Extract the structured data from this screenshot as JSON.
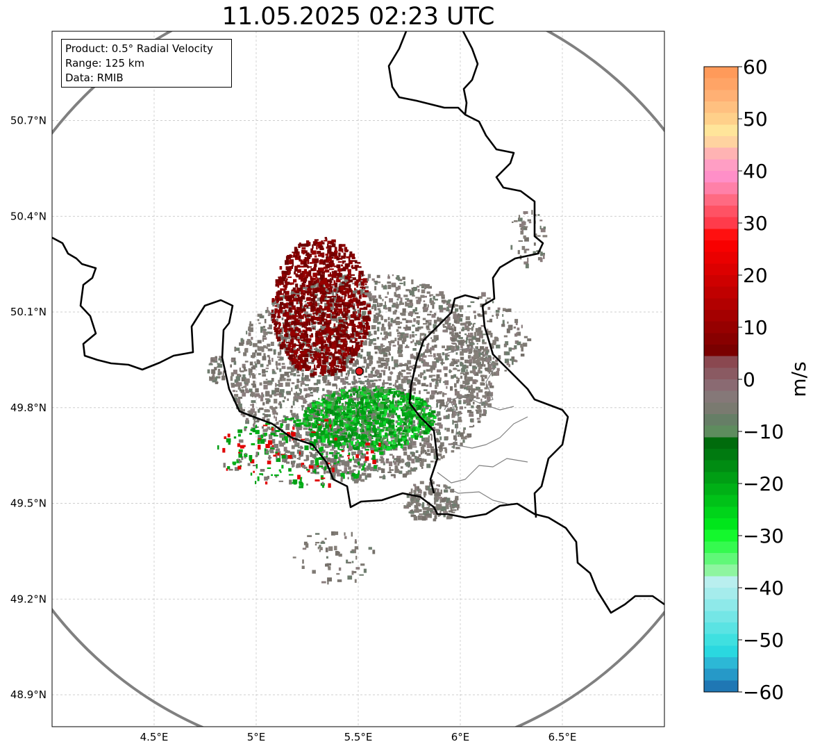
{
  "title": "11.05.2025 02:23 UTC",
  "info_box": {
    "lines": [
      "Product: 0.5° Radial Velocity",
      "Range: 125 km",
      "Data: RMIB"
    ]
  },
  "map": {
    "lon_range": [
      4.0,
      7.0
    ],
    "lat_range": [
      48.8,
      50.98
    ],
    "lon_ticks": [
      {
        "value": 4.5,
        "label": "4.5°E"
      },
      {
        "value": 5.0,
        "label": "5°E"
      },
      {
        "value": 5.5,
        "label": "5.5°E"
      },
      {
        "value": 6.0,
        "label": "6°E"
      },
      {
        "value": 6.5,
        "label": "6.5°E"
      }
    ],
    "lat_ticks": [
      {
        "value": 50.7,
        "label": "50.7°N"
      },
      {
        "value": 50.4,
        "label": "50.4°N"
      },
      {
        "value": 50.1,
        "label": "50.1°N"
      },
      {
        "value": 49.8,
        "label": "49.8°N"
      },
      {
        "value": 49.5,
        "label": "49.5°N"
      },
      {
        "value": 49.2,
        "label": "49.2°N"
      },
      {
        "value": 48.9,
        "label": "48.9°N"
      }
    ],
    "grid": true,
    "radar_site": {
      "lon": 5.505,
      "lat": 49.914
    },
    "range_ring_km": 125,
    "colors": {
      "range_ring": "#808080",
      "border": "#000000",
      "admin_border": "#808080",
      "radar_marker": "#e31a1c"
    }
  },
  "colorbar": {
    "label": "m/s",
    "min": -60,
    "max": 60,
    "ticks": [
      {
        "value": 60,
        "label": "60"
      },
      {
        "value": 50,
        "label": "50"
      },
      {
        "value": 40,
        "label": "40"
      },
      {
        "value": 30,
        "label": "30"
      },
      {
        "value": 20,
        "label": "20"
      },
      {
        "value": 10,
        "label": "10"
      },
      {
        "value": 0,
        "label": "0"
      },
      {
        "value": -10,
        "label": "−10"
      },
      {
        "value": -20,
        "label": "−20"
      },
      {
        "value": -30,
        "label": "−30"
      },
      {
        "value": -40,
        "label": "−40"
      },
      {
        "value": -50,
        "label": "−50"
      },
      {
        "value": -60,
        "label": "−60"
      }
    ],
    "stops": [
      "#1f77b4",
      "#2699c8",
      "#2cb8d6",
      "#2ad8e0",
      "#3fe0e0",
      "#5ae3e3",
      "#74e6e6",
      "#8ee9e9",
      "#a5ecec",
      "#b9efef",
      "#8ef5a0",
      "#60f878",
      "#35fa4f",
      "#14f82d",
      "#00e61b",
      "#00d41a",
      "#00c218",
      "#00b016",
      "#009e14",
      "#008c12",
      "#007a10",
      "#006b0c",
      "#5e8c5e",
      "#667e66",
      "#7a7a70",
      "#857878",
      "#8a6a72",
      "#8a5a62",
      "#8a4850",
      "#7a0000",
      "#880000",
      "#960000",
      "#a40000",
      "#b20000",
      "#c00000",
      "#ce0000",
      "#dc0000",
      "#ea0000",
      "#f80000",
      "#ff1010",
      "#ff3b4b",
      "#ff5264",
      "#ff6a82",
      "#ff80a8",
      "#ff8fc8",
      "#ff9ec4",
      "#ffb3b3",
      "#ffd3a0",
      "#ffe59a",
      "#ffd08a",
      "#ffc080",
      "#ffb074",
      "#ffa466",
      "#ff9a5a"
    ]
  }
}
